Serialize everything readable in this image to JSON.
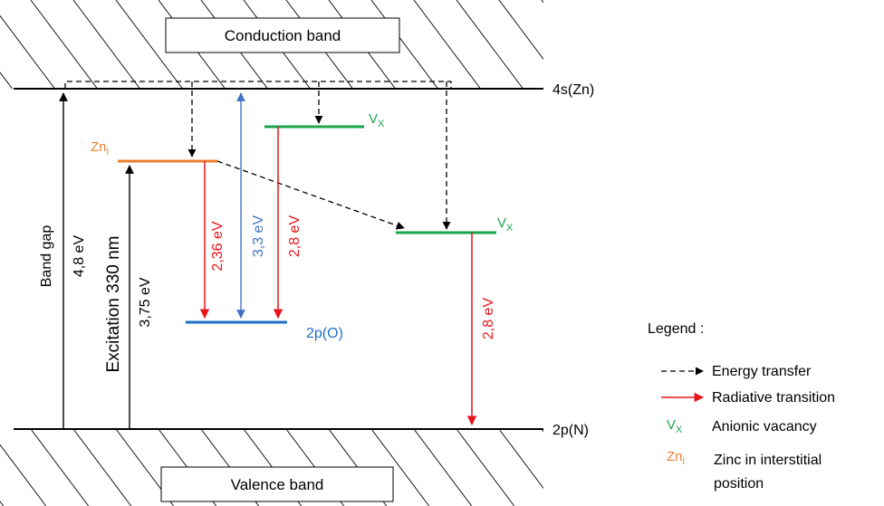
{
  "bands": {
    "conduction": "Conduction band",
    "valence": "Valence band",
    "top_level": "4s(Zn)",
    "bottom_level": "2p(N)"
  },
  "levels": {
    "zn_i": {
      "base": "Zn",
      "sub": "i"
    },
    "v_x_upper": {
      "base": "V",
      "sub": "X"
    },
    "v_x_lower": {
      "base": "V",
      "sub": "X"
    },
    "o_2p": "2p(O)"
  },
  "transitions": {
    "band_gap_label": "Band gap",
    "band_gap_energy": "4,8 eV",
    "excitation_label": "Excitation 330 nm",
    "excitation_energy": "3,75 eV",
    "zn_to_o": "2,36 eV",
    "o_to_band": "3,3 eV",
    "vx_to_o": "2,8 eV",
    "vx_lower_to_n": "2,8 eV"
  },
  "legend": {
    "title": "Legend :",
    "energy_transfer": "Energy transfer",
    "radiative_transition": "Radiative transition",
    "anionic_vacancy_symbol": {
      "base": "V",
      "sub": "X"
    },
    "anionic_vacancy": "Anionic vacancy",
    "zinc_symbol": {
      "base": "Zn",
      "sub": "i"
    },
    "zinc_line1": "Zinc in interstitial",
    "zinc_line2": "position"
  },
  "colors": {
    "black": "#000000",
    "red": "#e8141b",
    "blue": "#1f6fc5",
    "light_blue": "#4472c4",
    "green": "#1aa54a",
    "orange": "#ed7d31"
  }
}
